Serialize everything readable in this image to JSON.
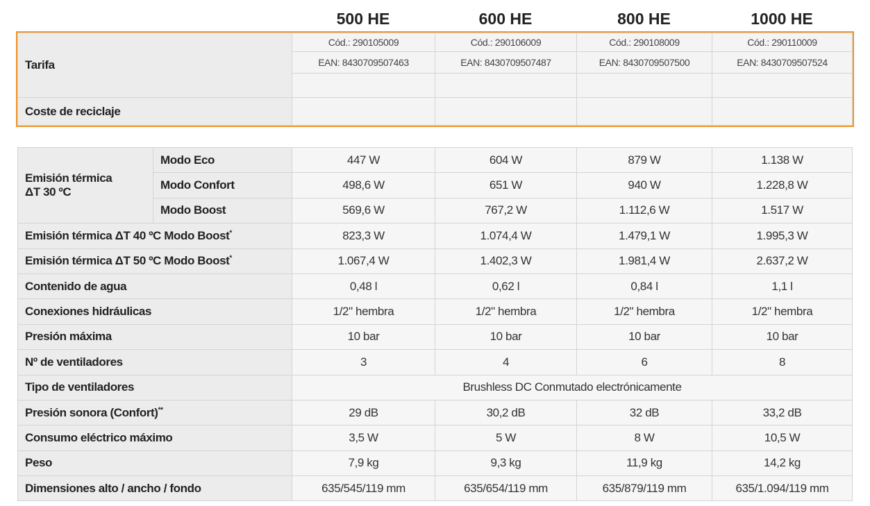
{
  "models": [
    {
      "name": "500 HE",
      "cod": "Cód.: 290105009",
      "ean": "EAN: 8430709507463"
    },
    {
      "name": "600 HE",
      "cod": "Cód.: 290106009",
      "ean": "EAN: 8430709507487"
    },
    {
      "name": "800 HE",
      "cod": "Cód.: 290108009",
      "ean": "EAN: 8430709507500"
    },
    {
      "name": "1000 HE",
      "cod": "Cód.: 290110009",
      "ean": "EAN: 8430709507524"
    }
  ],
  "pricing": {
    "tarifa": "Tarifa",
    "reciclaje": "Coste de reciclaje"
  },
  "emission_group": {
    "label_lines": [
      "Emisión térmica",
      "ΔT 30 ºC"
    ],
    "rows": [
      {
        "mode": "Modo Eco",
        "values": [
          "447 W",
          "604 W",
          "879 W",
          "1.138 W"
        ]
      },
      {
        "mode": "Modo Confort",
        "values": [
          "498,6 W",
          "651 W",
          "940 W",
          "1.228,8 W"
        ]
      },
      {
        "mode": "Modo Boost",
        "values": [
          "569,6 W",
          "767,2 W",
          "1.112,6 W",
          "1.517 W"
        ]
      }
    ]
  },
  "rows": [
    {
      "label": "Emisión térmica ΔT 40 ºC Modo Boost",
      "note": "*",
      "values": [
        "823,3 W",
        "1.074,4 W",
        "1.479,1 W",
        "1.995,3 W"
      ]
    },
    {
      "label": "Emisión térmica ΔT 50 ºC Modo Boost",
      "note": "*",
      "values": [
        "1.067,4 W",
        "1.402,3 W",
        "1.981,4 W",
        "2.637,2 W"
      ]
    },
    {
      "label": "Contenido de agua",
      "values": [
        "0,48 l",
        "0,62 l",
        "0,84 l",
        "1,1 l"
      ]
    },
    {
      "label": "Conexiones hidráulicas",
      "values": [
        "1/2\" hembra",
        "1/2\" hembra",
        "1/2\" hembra",
        "1/2\" hembra"
      ]
    },
    {
      "label": "Presión máxima",
      "values": [
        "10 bar",
        "10 bar",
        "10 bar",
        "10 bar"
      ]
    },
    {
      "label": "Nº de ventiladores",
      "values": [
        "3",
        "4",
        "6",
        "8"
      ]
    },
    {
      "label": "Tipo de ventiladores",
      "value": "Brushless DC Conmutado electrónicamente"
    },
    {
      "label": "Presión sonora (Confort)",
      "note": "**",
      "values": [
        "29 dB",
        "30,2 dB",
        "32 dB",
        "33,2 dB"
      ]
    },
    {
      "label": "Consumo eléctrico máximo",
      "values": [
        "3,5 W",
        "5 W",
        "8 W",
        "10,5 W"
      ]
    },
    {
      "label": "Peso",
      "values": [
        "7,9 kg",
        "9,3 kg",
        "11,9 kg",
        "14,2 kg"
      ]
    },
    {
      "label": "Dimensiones alto / ancho / fondo",
      "values": [
        "635/545/119 mm",
        "635/654/119 mm",
        "635/879/119 mm",
        "635/1.094/119 mm"
      ]
    }
  ]
}
